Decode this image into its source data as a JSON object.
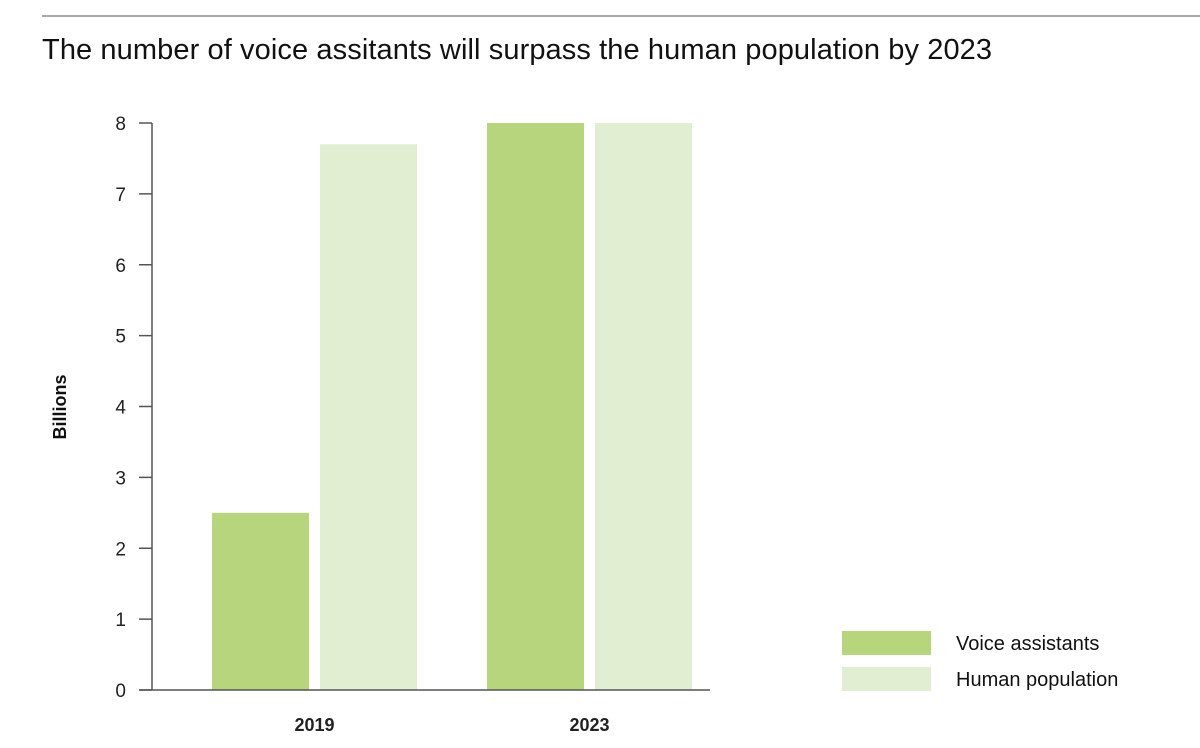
{
  "chart_data": {
    "type": "bar",
    "title": "The number of voice assitants will surpass the human population by 2023",
    "xlabel": "",
    "ylabel": "Billions",
    "categories": [
      "2019",
      "2023"
    ],
    "series": [
      {
        "name": "Voice assistants",
        "values": [
          2.5,
          8
        ],
        "color": "#b7d57c"
      },
      {
        "name": "Human population",
        "values": [
          7.7,
          8
        ],
        "color": "#e2eed2"
      }
    ],
    "ylim": [
      0,
      8
    ],
    "yticks": [
      0,
      1,
      2,
      3,
      4,
      5,
      6,
      7,
      8
    ],
    "grid": false,
    "legend_position": "bottom-right"
  },
  "colors": {
    "axis": "#555555",
    "top_rule": "#a9a9a9"
  }
}
